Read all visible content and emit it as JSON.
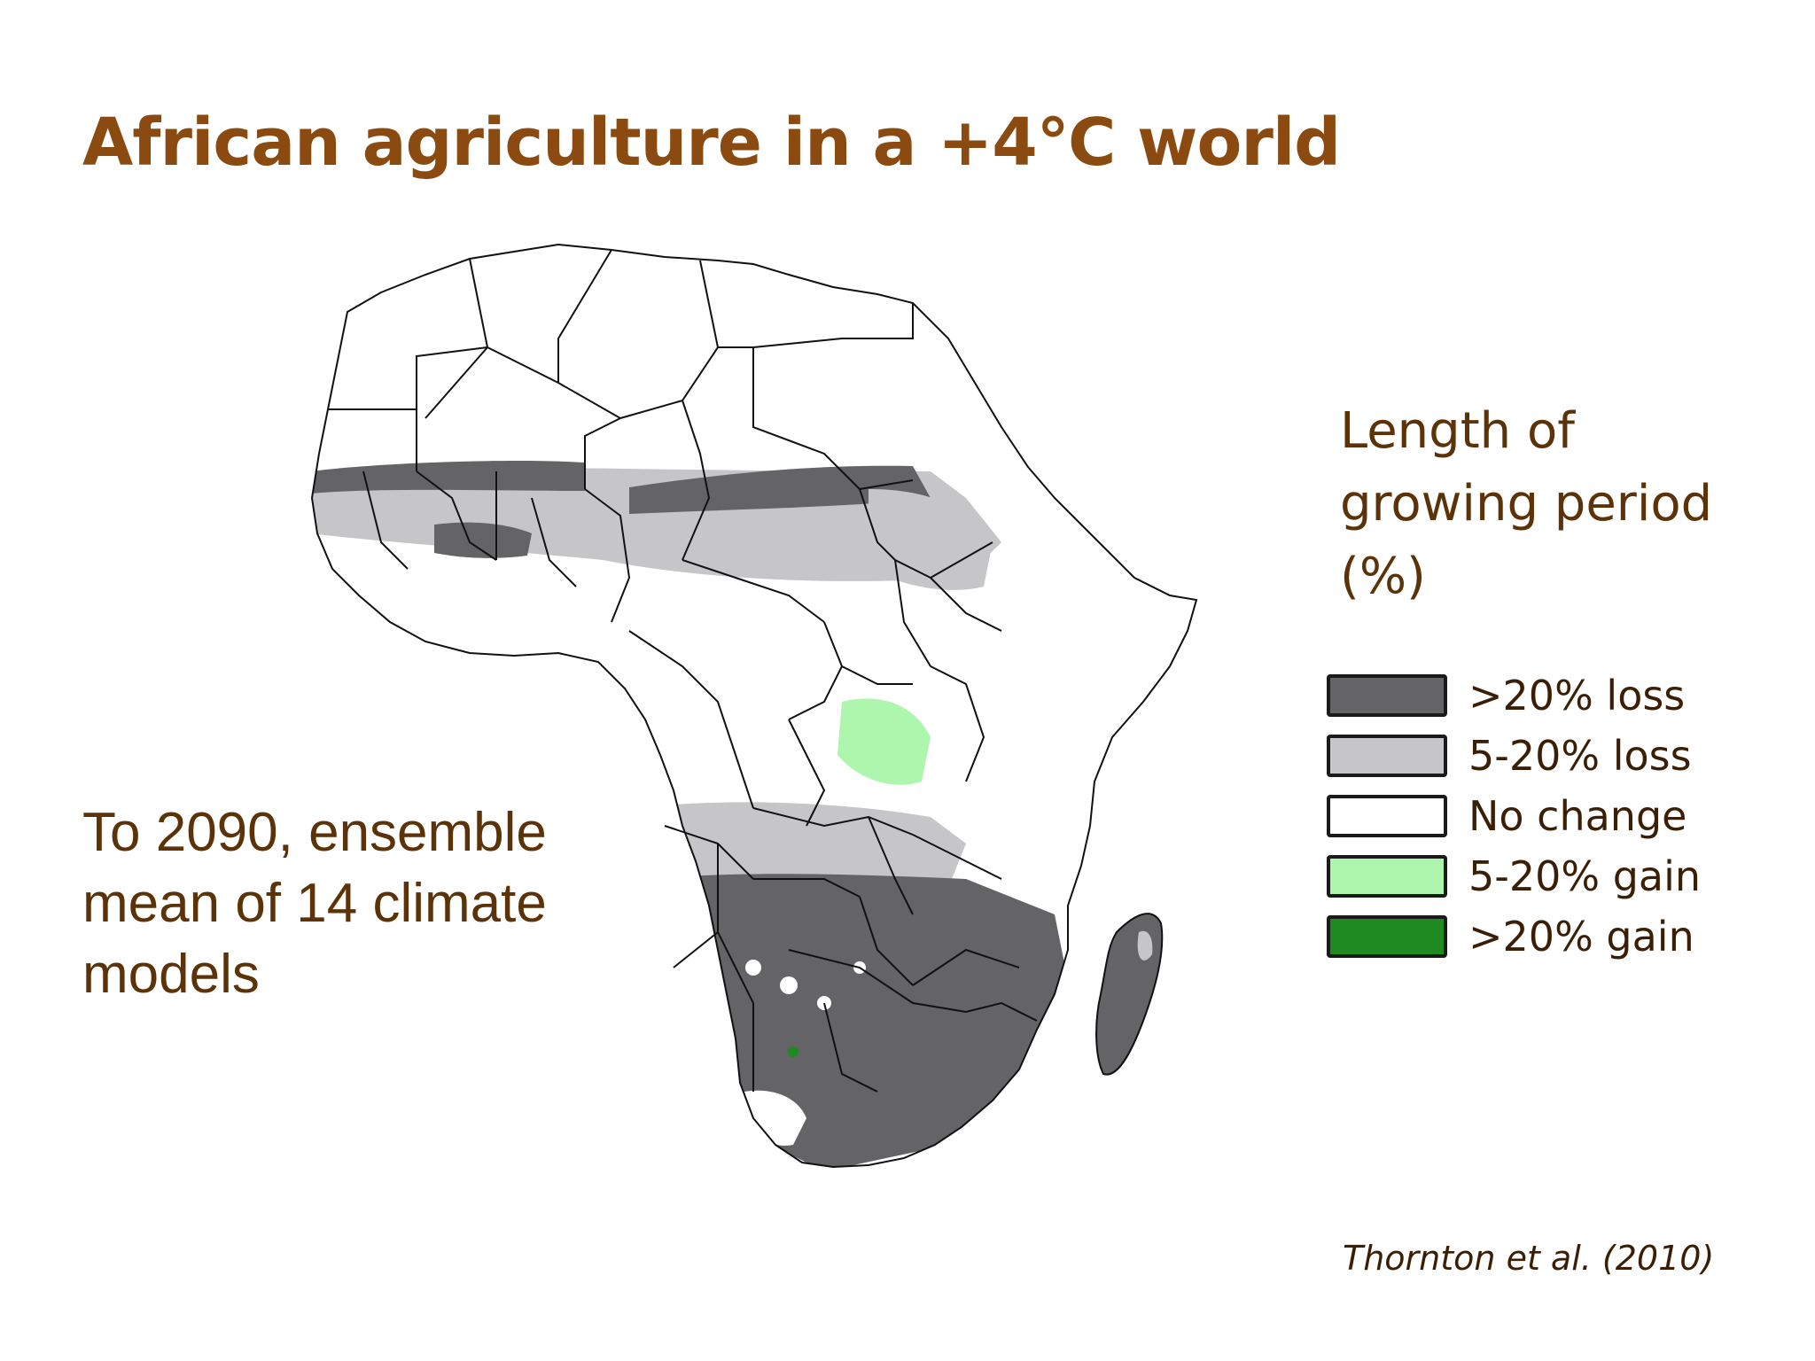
{
  "slide": {
    "title": "African agriculture in a +4℃ world",
    "caption": "To 2090, ensemble mean of 14 climate models",
    "source": "Thornton et al. (2010)"
  },
  "legend": {
    "title": "Length of growing period (%)",
    "items": [
      {
        "label": ">20% loss",
        "color": "#646466"
      },
      {
        "label": "5-20% loss",
        "color": "#c6c6c8"
      },
      {
        "label": "No change",
        "color": "#ffffff"
      },
      {
        "label": "5-20% gain",
        "color": "#aef5ae"
      },
      {
        "label": ">20% gain",
        "color": "#1f8a1f"
      }
    ]
  },
  "map": {
    "region": "Africa",
    "colors": {
      "border": "#111111",
      "loss_high": "#646466",
      "loss_mid": "#c6c6c8",
      "no_change": "#ffffff",
      "gain_mid": "#aef5ae",
      "gain_high": "#1f8a1f"
    }
  }
}
